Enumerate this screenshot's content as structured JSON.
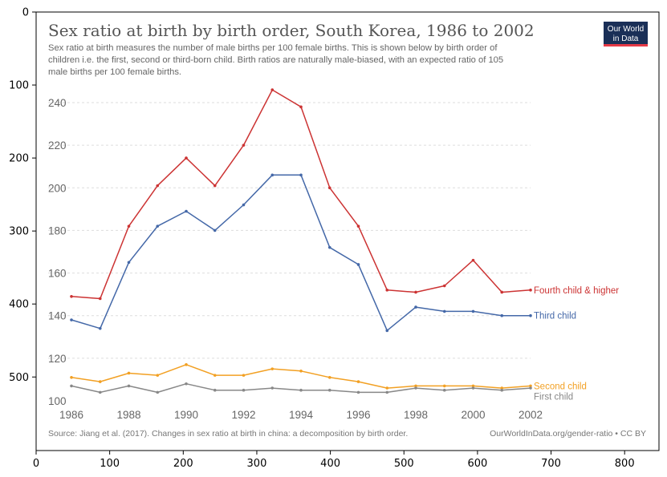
{
  "outer_axes": {
    "x_ticks": [
      "0",
      "100",
      "200",
      "300",
      "400",
      "500",
      "600",
      "700",
      "800"
    ],
    "y_ticks": [
      "0",
      "100",
      "200",
      "300",
      "400",
      "500"
    ]
  },
  "logo": {
    "line1": "Our World",
    "line2": "in Data",
    "bg": "#1a2f57",
    "bar": "#e63946"
  },
  "title": "Sex ratio at birth by birth order, South Korea, 1986 to 2002",
  "subtitle_lines": [
    "Sex ratio at birth measures the number of male births per 100 female births. This is shown below by birth order of",
    "children i.e. the first, second or third-born child. Birth ratios are naturally male-biased, with an expected ratio of 105",
    "male births per 100 female births."
  ],
  "footer_left": "Source: Jiang et al. (2017). Changes in sex ratio at birth in china: a decomposition by birth order.",
  "footer_right": "OurWorldInData.org/gender-ratio • CC BY",
  "chart_data": {
    "type": "line",
    "title": "Sex ratio at birth by birth order, South Korea, 1986 to 2002",
    "xlabel": "",
    "ylabel": "",
    "x": [
      1986,
      1987,
      1988,
      1989,
      1990,
      1991,
      1992,
      1993,
      1994,
      1995,
      1996,
      1997,
      1998,
      1999,
      2000,
      2001,
      2002
    ],
    "x_ticks": [
      "1986",
      "1988",
      "1990",
      "1992",
      "1994",
      "1996",
      "1998",
      "2000",
      "2002"
    ],
    "y_ticks": [
      "100",
      "120",
      "140",
      "160",
      "180",
      "200",
      "220",
      "240"
    ],
    "ylim": [
      100,
      250
    ],
    "grid": true,
    "legend": "inline labels at right end",
    "series": [
      {
        "name": "Fourth child & higher",
        "color": "#cc3333",
        "values": [
          149,
          148,
          182,
          201,
          214,
          201,
          220,
          246,
          238,
          200,
          182,
          152,
          151,
          154,
          166,
          151,
          152
        ]
      },
      {
        "name": "Third child",
        "color": "#4468a8",
        "values": [
          138,
          134,
          165,
          182,
          189,
          180,
          192,
          206,
          206,
          172,
          164,
          133,
          144,
          142,
          142,
          140,
          140
        ]
      },
      {
        "name": "Second child",
        "color": "#f2a023",
        "values": [
          111,
          109,
          113,
          112,
          117,
          112,
          112,
          115,
          114,
          111,
          109,
          106,
          107,
          107,
          107,
          106,
          107
        ]
      },
      {
        "name": "First child",
        "color": "#888888",
        "values": [
          107,
          104,
          107,
          104,
          108,
          105,
          105,
          106,
          105,
          105,
          104,
          104,
          106,
          105,
          106,
          105,
          106
        ]
      }
    ]
  }
}
